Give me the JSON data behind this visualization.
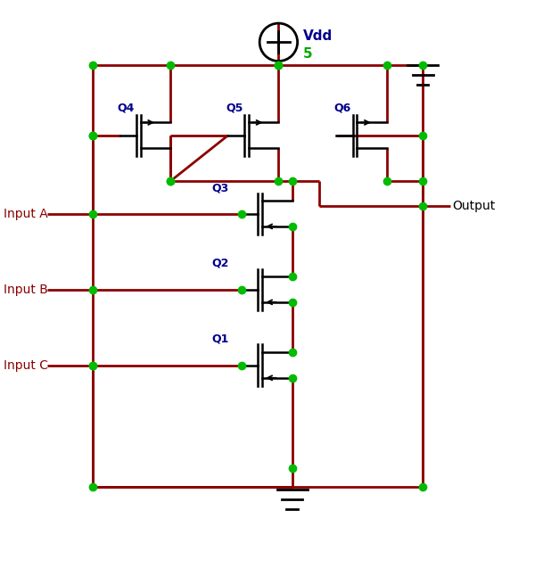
{
  "bg": "#ffffff",
  "wc": "#8B0000",
  "nc": "#00BB00",
  "tc": "#000000",
  "lc": "#00008B",
  "vdd_label": "Vdd",
  "vdd_val": "5",
  "vdd_val_color": "#00AA00",
  "out_label": "Output",
  "in_labels": [
    "Input A",
    "Input B",
    "Input C"
  ],
  "q_labels": [
    "Q1",
    "Q2",
    "Q3",
    "Q4",
    "Q5",
    "Q6"
  ],
  "figsize": [
    6.09,
    6.37
  ],
  "dpi": 100
}
